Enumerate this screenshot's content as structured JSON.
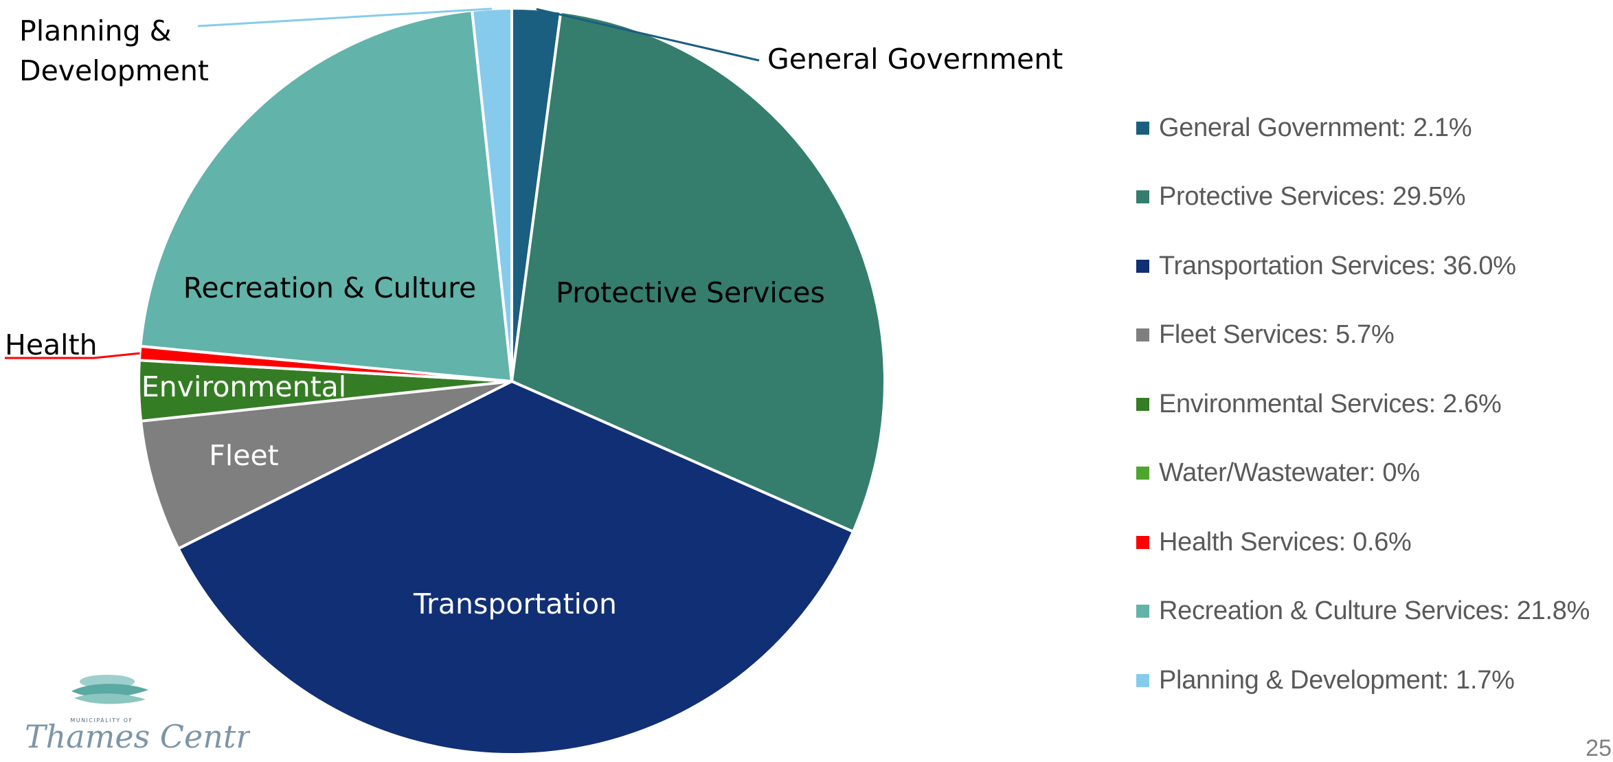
{
  "chart_data": {
    "type": "pie",
    "slices": [
      {
        "name": "General Government",
        "value": 2.1,
        "color": "#1a5e80",
        "slice_label": "General Government",
        "label_color": "#000000"
      },
      {
        "name": "Protective Services",
        "value": 29.5,
        "color": "#357d6d",
        "slice_label": "Protective Services",
        "label_color": "#000000"
      },
      {
        "name": "Transportation Services",
        "value": 36.0,
        "color": "#112f74",
        "slice_label": "Transportation",
        "label_color": "#ffffff"
      },
      {
        "name": "Fleet Services",
        "value": 5.7,
        "color": "#7f7f7f",
        "slice_label": "Fleet",
        "label_color": "#ffffff"
      },
      {
        "name": "Environmental Services",
        "value": 2.6,
        "color": "#357d24",
        "slice_label": "Environmental",
        "label_color": "#ffffff"
      },
      {
        "name": "Water/Wastewater",
        "value": 0,
        "color": "#4fa62e",
        "slice_label": "",
        "label_color": "#000000"
      },
      {
        "name": "Health Services",
        "value": 0.6,
        "color": "#ff0000",
        "slice_label": "Health",
        "label_color": "#000000"
      },
      {
        "name": "Recreation & Culture Services",
        "value": 21.8,
        "color": "#62b3a9",
        "slice_label": "Recreation & Culture",
        "label_color": "#000000"
      },
      {
        "name": "Planning & Development",
        "value": 1.7,
        "color": "#86cbec",
        "slice_label": "Planning & Development",
        "label_color": "#000000"
      }
    ],
    "legend_position": "right"
  },
  "legend": {
    "items": [
      {
        "text": "General Government: 2.1%",
        "color": "#1a5e80"
      },
      {
        "text": "Protective Services: 29.5%",
        "color": "#357d6d"
      },
      {
        "text": "Transportation Services: 36.0%",
        "color": "#112f74"
      },
      {
        "text": "Fleet Services: 5.7%",
        "color": "#7f7f7f"
      },
      {
        "text": "Environmental Services: 2.6%",
        "color": "#357d24"
      },
      {
        "text": "Water/Wastewater: 0%",
        "color": "#4fa62e"
      },
      {
        "text": "Health Services: 0.6%",
        "color": "#ff0000"
      },
      {
        "text": "Recreation & Culture Services: 21.8%",
        "color": "#62b3a9"
      },
      {
        "text": "Planning & Development: 1.7%",
        "color": "#86cbec"
      }
    ]
  },
  "page_number": "25",
  "logo": {
    "top_text": "MUNICIPALITY OF",
    "name": "Thames Centre"
  }
}
